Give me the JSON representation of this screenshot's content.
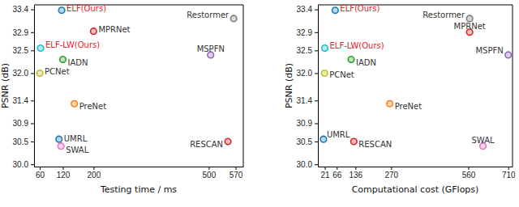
{
  "chart_data": [
    {
      "type": "scatter",
      "x_label": "Testing time / ms",
      "y_label": "PSNR (dB)",
      "xlim": [
        45,
        590
      ],
      "ylim": [
        29.95,
        33.5
      ],
      "xticks": [
        60,
        120,
        200,
        500,
        570
      ],
      "yticks": [
        {
          "value": 30,
          "label": "30.0"
        },
        30.5,
        30.9,
        31.4,
        {
          "value": 32,
          "label": "32.0"
        },
        32.5,
        32.9,
        33.4
      ],
      "grid": false,
      "marker": "o",
      "series": [
        {
          "name": "ELF(Ours)",
          "color": "#1f77b4",
          "x": [
            117
          ],
          "values": [
            33.38
          ]
        },
        {
          "name": "MPRNet",
          "color": "#d62728",
          "x": [
            200
          ],
          "values": [
            32.92
          ]
        },
        {
          "name": "Restormer",
          "color": "#7f7f7f",
          "x": [
            565
          ],
          "values": [
            33.2
          ]
        },
        {
          "name": "ELF-LW(Ours)",
          "color": "#17becf",
          "x": [
            62
          ],
          "values": [
            32.55
          ]
        },
        {
          "name": "IADN",
          "color": "#2ca02c",
          "x": [
            120
          ],
          "values": [
            32.3
          ]
        },
        {
          "name": "PCNet",
          "color": "#bcbd22",
          "x": [
            60
          ],
          "values": [
            32.0
          ]
        },
        {
          "name": "MSPFN",
          "color": "#9467bd",
          "x": [
            505
          ],
          "values": [
            32.4
          ]
        },
        {
          "name": "PreNet",
          "color": "#ff7f0e",
          "x": [
            150
          ],
          "values": [
            31.33
          ]
        },
        {
          "name": "UMRL",
          "color": "#1f77b4",
          "x": [
            110
          ],
          "values": [
            30.55
          ]
        },
        {
          "name": "SWAL",
          "color": "#e377c2",
          "x": [
            115
          ],
          "values": [
            30.4
          ]
        },
        {
          "name": "RESCAN",
          "color": "#d62728",
          "x": [
            550
          ],
          "values": [
            30.5
          ]
        }
      ]
    },
    {
      "type": "scatter",
      "x_label": "Computational cost (GFlops)",
      "y_label": "PSNR (dB)",
      "xlim": [
        -5,
        726
      ],
      "ylim": [
        29.95,
        33.5
      ],
      "xticks": [
        21,
        66,
        136,
        270,
        560,
        710
      ],
      "yticks": [
        {
          "value": 30,
          "label": "30.0"
        },
        30.5,
        30.9,
        31.4,
        {
          "value": 32,
          "label": "32.0"
        },
        32.5,
        32.9,
        33.4
      ],
      "grid": false,
      "marker": "o",
      "series": [
        {
          "name": "ELF(Ours)",
          "color": "#1f77b4",
          "x": [
            60
          ],
          "values": [
            33.38
          ]
        },
        {
          "name": "MPRNet",
          "color": "#d62728",
          "x": [
            565
          ],
          "values": [
            32.9
          ]
        },
        {
          "name": "Restormer",
          "color": "#7f7f7f",
          "x": [
            565
          ],
          "values": [
            33.2
          ]
        },
        {
          "name": "ELF-LW(Ours)",
          "color": "#17becf",
          "x": [
            21
          ],
          "values": [
            32.55
          ]
        },
        {
          "name": "IADN",
          "color": "#2ca02c",
          "x": [
            120
          ],
          "values": [
            32.3
          ]
        },
        {
          "name": "PCNet",
          "color": "#bcbd22",
          "x": [
            20
          ],
          "values": [
            32.0
          ]
        },
        {
          "name": "MSPFN",
          "color": "#9467bd",
          "x": [
            710
          ],
          "values": [
            32.4
          ]
        },
        {
          "name": "PreNet",
          "color": "#ff7f0e",
          "x": [
            265
          ],
          "values": [
            31.33
          ]
        },
        {
          "name": "UMRL",
          "color": "#1f77b4",
          "x": [
            16
          ],
          "values": [
            30.55
          ]
        },
        {
          "name": "SWAL",
          "color": "#e377c2",
          "x": [
            615
          ],
          "values": [
            30.4
          ]
        },
        {
          "name": "RESCAN",
          "color": "#d62728",
          "x": [
            130
          ],
          "values": [
            30.5
          ]
        }
      ]
    }
  ]
}
